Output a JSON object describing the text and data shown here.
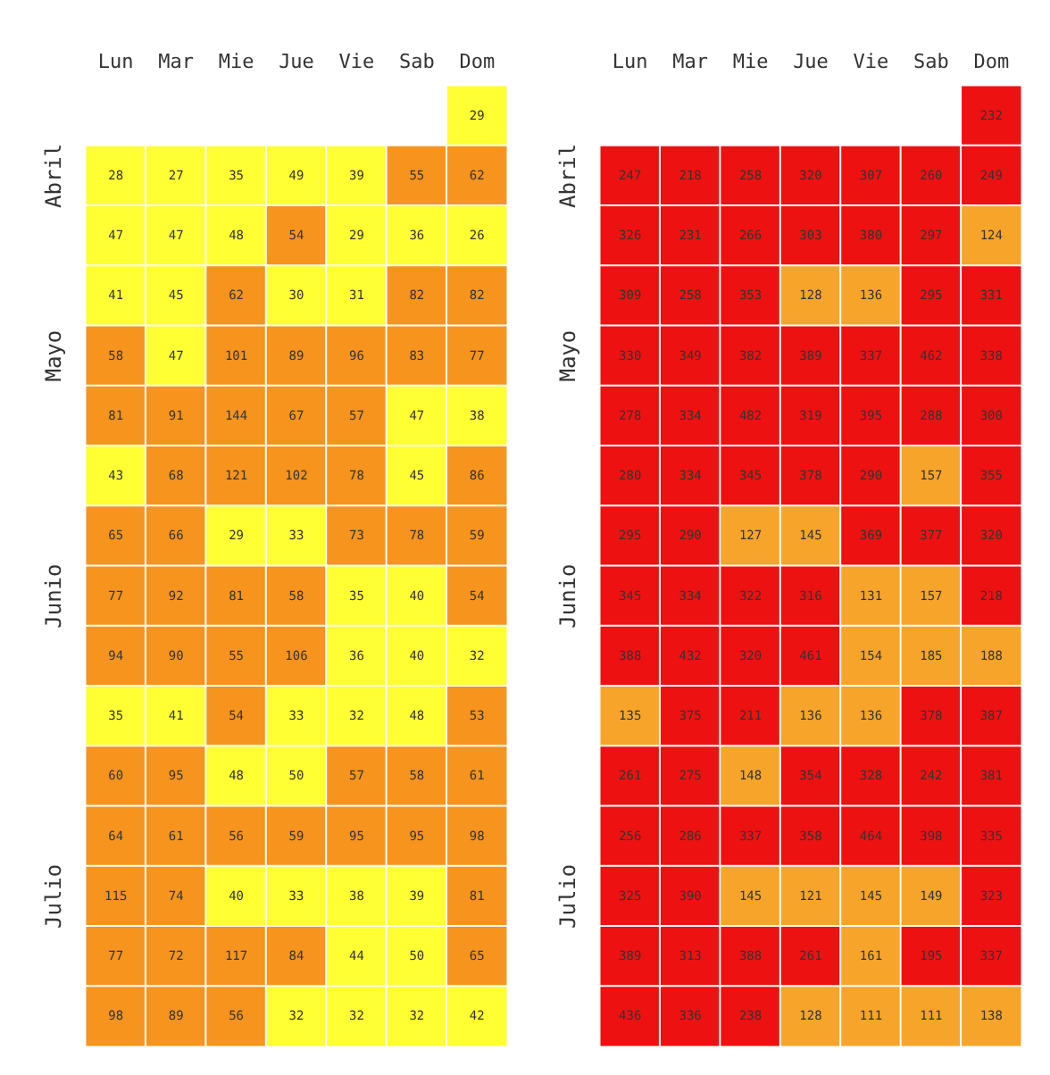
{
  "chart_data": [
    {
      "type": "heatmap",
      "categories": [
        "Lun",
        "Mar",
        "Mie",
        "Jue",
        "Vie",
        "Sab",
        "Dom"
      ],
      "y_categories": [
        null,
        "Abril",
        null,
        null,
        "Mayo",
        null,
        null,
        null,
        "Junio",
        null,
        null,
        null,
        null,
        "Julio",
        null,
        null
      ],
      "data_labels": true,
      "cells": [
        [
          null,
          null,
          null,
          null,
          null,
          null,
          29
        ],
        [
          28,
          27,
          35,
          49,
          39,
          55,
          62
        ],
        [
          47,
          47,
          48,
          54,
          29,
          36,
          26
        ],
        [
          41,
          45,
          62,
          30,
          31,
          82,
          82
        ],
        [
          58,
          47,
          101,
          89,
          96,
          83,
          77
        ],
        [
          81,
          91,
          144,
          67,
          57,
          47,
          38
        ],
        [
          43,
          68,
          121,
          102,
          78,
          45,
          86
        ],
        [
          65,
          66,
          29,
          33,
          73,
          78,
          59
        ],
        [
          77,
          92,
          81,
          58,
          35,
          40,
          54
        ],
        [
          94,
          90,
          55,
          106,
          36,
          40,
          32
        ],
        [
          35,
          41,
          54,
          33,
          32,
          48,
          53
        ],
        [
          60,
          95,
          48,
          50,
          57,
          58,
          61
        ],
        [
          64,
          61,
          56,
          59,
          95,
          95,
          98
        ],
        [
          115,
          74,
          40,
          33,
          38,
          39,
          81
        ],
        [
          77,
          72,
          117,
          84,
          44,
          50,
          65
        ],
        [
          98,
          89,
          56,
          32,
          32,
          32,
          42
        ]
      ],
      "colors": [
        [
          null,
          null,
          null,
          null,
          null,
          null,
          "#ffff33"
        ],
        [
          "#ffff33",
          "#ffff33",
          "#ffff33",
          "#ffff33",
          "#ffff33",
          "#f7941d",
          "#f7941d"
        ],
        [
          "#ffff33",
          "#ffff33",
          "#ffff33",
          "#f7941d",
          "#ffff33",
          "#ffff33",
          "#ffff33"
        ],
        [
          "#ffff33",
          "#ffff33",
          "#f7941d",
          "#ffff33",
          "#ffff33",
          "#f7941d",
          "#f7941d"
        ],
        [
          "#f7941d",
          "#ffff33",
          "#f7941d",
          "#f7941d",
          "#f7941d",
          "#f7941d",
          "#f7941d"
        ],
        [
          "#f7941d",
          "#f7941d",
          "#f7941d",
          "#f7941d",
          "#f7941d",
          "#ffff33",
          "#ffff33"
        ],
        [
          "#ffff33",
          "#f7941d",
          "#f7941d",
          "#f7941d",
          "#f7941d",
          "#ffff33",
          "#f7941d"
        ],
        [
          "#f7941d",
          "#f7941d",
          "#ffff33",
          "#ffff33",
          "#f7941d",
          "#f7941d",
          "#f7941d"
        ],
        [
          "#f7941d",
          "#f7941d",
          "#f7941d",
          "#f7941d",
          "#ffff33",
          "#ffff33",
          "#f7941d"
        ],
        [
          "#f7941d",
          "#f7941d",
          "#f7941d",
          "#f7941d",
          "#ffff33",
          "#ffff33",
          "#ffff33"
        ],
        [
          "#ffff33",
          "#ffff33",
          "#f7941d",
          "#ffff33",
          "#ffff33",
          "#ffff33",
          "#f7941d"
        ],
        [
          "#f7941d",
          "#f7941d",
          "#ffff33",
          "#ffff33",
          "#f7941d",
          "#f7941d",
          "#f7941d"
        ],
        [
          "#f7941d",
          "#f7941d",
          "#f7941d",
          "#f7941d",
          "#f7941d",
          "#f7941d",
          "#f7941d"
        ],
        [
          "#f7941d",
          "#f7941d",
          "#ffff33",
          "#ffff33",
          "#ffff33",
          "#ffff33",
          "#f7941d"
        ],
        [
          "#f7941d",
          "#f7941d",
          "#f7941d",
          "#f7941d",
          "#ffff33",
          "#ffff33",
          "#f7941d"
        ],
        [
          "#f7941d",
          "#f7941d",
          "#f7941d",
          "#ffff33",
          "#ffff33",
          "#ffff33",
          "#ffff33"
        ]
      ]
    },
    {
      "type": "heatmap",
      "categories": [
        "Lun",
        "Mar",
        "Mie",
        "Jue",
        "Vie",
        "Sab",
        "Dom"
      ],
      "y_categories": [
        null,
        "Abril",
        null,
        null,
        "Mayo",
        null,
        null,
        null,
        "Junio",
        null,
        null,
        null,
        null,
        "Julio",
        null,
        null
      ],
      "data_labels": true,
      "cells": [
        [
          null,
          null,
          null,
          null,
          null,
          null,
          232
        ],
        [
          247,
          218,
          258,
          320,
          307,
          260,
          249
        ],
        [
          326,
          231,
          266,
          303,
          380,
          297,
          124
        ],
        [
          309,
          258,
          353,
          128,
          136,
          295,
          331
        ],
        [
          330,
          349,
          382,
          389,
          337,
          462,
          338
        ],
        [
          278,
          334,
          482,
          319,
          395,
          288,
          300
        ],
        [
          280,
          334,
          345,
          378,
          290,
          157,
          355
        ],
        [
          295,
          290,
          127,
          145,
          369,
          377,
          320
        ],
        [
          345,
          334,
          322,
          316,
          131,
          157,
          218
        ],
        [
          388,
          432,
          320,
          461,
          154,
          185,
          188
        ],
        [
          135,
          375,
          211,
          136,
          136,
          378,
          387
        ],
        [
          261,
          275,
          148,
          354,
          328,
          242,
          381
        ],
        [
          256,
          286,
          337,
          358,
          464,
          398,
          335
        ],
        [
          325,
          390,
          145,
          121,
          145,
          149,
          323
        ],
        [
          389,
          313,
          388,
          261,
          161,
          195,
          337
        ],
        [
          436,
          336,
          238,
          128,
          111,
          111,
          138
        ]
      ],
      "colors": [
        [
          null,
          null,
          null,
          null,
          null,
          null,
          "#ee1111"
        ],
        [
          "#ee1111",
          "#ee1111",
          "#ee1111",
          "#ee1111",
          "#ee1111",
          "#ee1111",
          "#ee1111"
        ],
        [
          "#ee1111",
          "#ee1111",
          "#ee1111",
          "#ee1111",
          "#ee1111",
          "#ee1111",
          "#f6a52a"
        ],
        [
          "#ee1111",
          "#ee1111",
          "#ee1111",
          "#f6a52a",
          "#f6a52a",
          "#ee1111",
          "#ee1111"
        ],
        [
          "#ee1111",
          "#ee1111",
          "#ee1111",
          "#ee1111",
          "#ee1111",
          "#ee1111",
          "#ee1111"
        ],
        [
          "#ee1111",
          "#ee1111",
          "#ee1111",
          "#ee1111",
          "#ee1111",
          "#ee1111",
          "#ee1111"
        ],
        [
          "#ee1111",
          "#ee1111",
          "#ee1111",
          "#ee1111",
          "#ee1111",
          "#f6a52a",
          "#ee1111"
        ],
        [
          "#ee1111",
          "#ee1111",
          "#f6a52a",
          "#f6a52a",
          "#ee1111",
          "#ee1111",
          "#ee1111"
        ],
        [
          "#ee1111",
          "#ee1111",
          "#ee1111",
          "#ee1111",
          "#f6a52a",
          "#f6a52a",
          "#ee1111"
        ],
        [
          "#ee1111",
          "#ee1111",
          "#ee1111",
          "#ee1111",
          "#f6a52a",
          "#f6a52a",
          "#f6a52a"
        ],
        [
          "#f6a52a",
          "#ee1111",
          "#ee1111",
          "#f6a52a",
          "#f6a52a",
          "#ee1111",
          "#ee1111"
        ],
        [
          "#ee1111",
          "#ee1111",
          "#f6a52a",
          "#ee1111",
          "#ee1111",
          "#ee1111",
          "#ee1111"
        ],
        [
          "#ee1111",
          "#ee1111",
          "#ee1111",
          "#ee1111",
          "#ee1111",
          "#ee1111",
          "#ee1111"
        ],
        [
          "#ee1111",
          "#ee1111",
          "#f6a52a",
          "#f6a52a",
          "#f6a52a",
          "#f6a52a",
          "#ee1111"
        ],
        [
          "#ee1111",
          "#ee1111",
          "#ee1111",
          "#ee1111",
          "#f6a52a",
          "#ee1111",
          "#ee1111"
        ],
        [
          "#ee1111",
          "#ee1111",
          "#ee1111",
          "#f6a52a",
          "#f6a52a",
          "#f6a52a",
          "#f6a52a"
        ]
      ]
    }
  ]
}
